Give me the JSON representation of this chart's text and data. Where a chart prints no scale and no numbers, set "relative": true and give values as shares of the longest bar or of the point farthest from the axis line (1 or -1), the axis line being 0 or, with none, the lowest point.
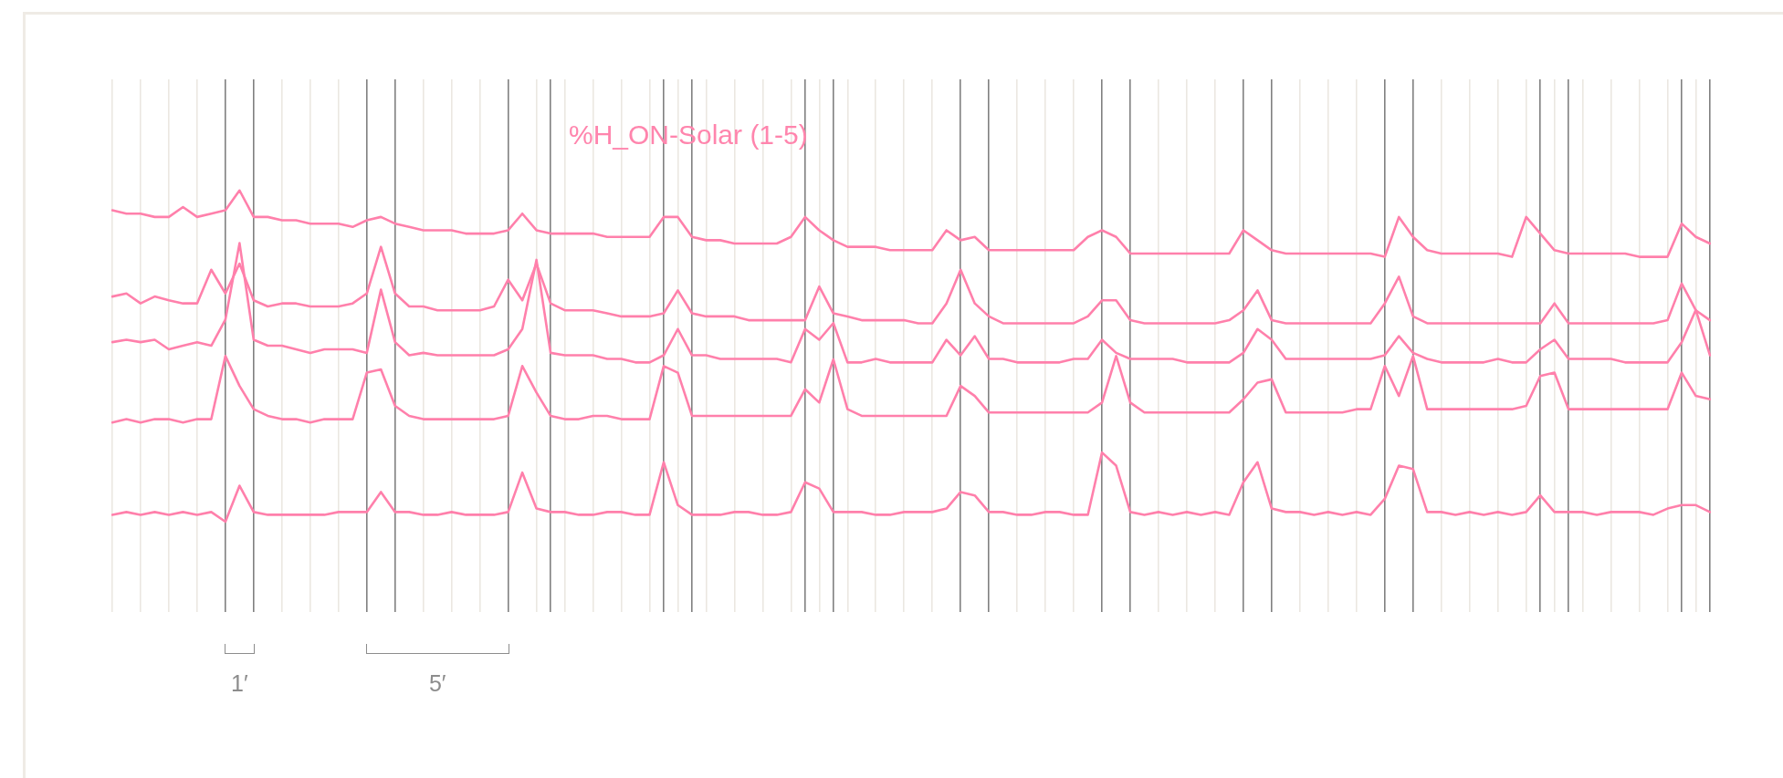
{
  "chart_data": [
    {
      "type": "line",
      "title": "%H_ON-Solar (1-5)",
      "relative": true,
      "grid": "x",
      "annotations": [
        "1′",
        "5′"
      ],
      "categories": [
        null,
        null,
        null,
        null,
        null,
        null,
        null,
        null,
        null,
        null,
        null,
        null,
        null,
        null,
        null,
        null,
        null,
        null,
        null,
        null,
        null,
        null,
        null,
        null,
        null,
        null,
        null,
        null,
        null,
        null,
        null,
        null,
        null,
        null,
        null,
        null,
        null,
        null,
        null,
        null,
        null,
        null,
        null,
        null,
        null,
        null,
        null,
        null,
        null,
        null,
        null,
        null,
        null,
        null,
        null,
        null,
        null,
        null,
        null,
        null,
        null,
        null,
        null,
        null,
        null,
        null,
        null,
        null,
        null,
        null,
        null,
        null,
        null,
        null,
        null,
        null,
        null,
        null,
        null,
        null,
        null,
        null,
        null,
        null,
        null,
        null,
        null,
        null,
        null,
        null,
        null,
        null,
        null,
        null,
        null,
        null,
        null,
        null,
        null,
        null,
        null,
        null,
        null,
        null,
        null,
        null,
        null,
        null,
        null,
        null,
        null,
        null,
        null,
        null
      ],
      "series": [
        {
          "color": "#ff80ab",
          "values": [
            0.7,
            0.65,
            0.65,
            0.6,
            0.6,
            0.75,
            0.6,
            0.65,
            0.7,
            1,
            0.6,
            0.6,
            0.55,
            0.55,
            0.5,
            0.5,
            0.5,
            0.45,
            0.55,
            0.6,
            0.5,
            0.45,
            0.4,
            0.4,
            0.4,
            0.35,
            0.35,
            0.35,
            0.4,
            0.65,
            0.4,
            0.35,
            0.35,
            0.35,
            0.35,
            0.3,
            0.3,
            0.3,
            0.3,
            0.6,
            0.6,
            0.3,
            0.25,
            0.25,
            0.2,
            0.2,
            0.2,
            0.2,
            0.3,
            0.6,
            0.4,
            0.25,
            0.15,
            0.15,
            0.15,
            0.1,
            0.1,
            0.1,
            0.1,
            0.4,
            0.25,
            0.3,
            0.1,
            0.1,
            0.1,
            0.1,
            0.1,
            0.1,
            0.1,
            0.3,
            0.4,
            0.3,
            0.05,
            0.05,
            0.05,
            0.05,
            0.05,
            0.05,
            0.05,
            0.05,
            0.4,
            0.25,
            0.1,
            0.05,
            0.05,
            0.05,
            0.05,
            0.05,
            0.05,
            0.05,
            0,
            0.6,
            0.3,
            0.1,
            0.05,
            0.05,
            0.05,
            0.05,
            0.05,
            0,
            0.6,
            0.35,
            0.1,
            0.05,
            0.05,
            0.05,
            0.05,
            0.05,
            0,
            0,
            0,
            0.5,
            0.3,
            0.2
          ]
        }
      ]
    },
    {
      "type": "line",
      "relative": true,
      "categories": [
        null,
        null,
        null,
        null,
        null,
        null,
        null,
        null,
        null,
        null,
        null,
        null,
        null,
        null,
        null,
        null,
        null,
        null,
        null,
        null,
        null,
        null,
        null,
        null,
        null,
        null,
        null,
        null,
        null,
        null,
        null,
        null,
        null,
        null,
        null,
        null,
        null,
        null,
        null,
        null,
        null,
        null,
        null,
        null,
        null,
        null,
        null,
        null,
        null,
        null,
        null,
        null,
        null,
        null,
        null,
        null,
        null,
        null,
        null,
        null,
        null,
        null,
        null,
        null,
        null,
        null,
        null,
        null,
        null,
        null,
        null,
        null,
        null,
        null,
        null,
        null,
        null,
        null,
        null,
        null,
        null,
        null,
        null,
        null,
        null,
        null,
        null,
        null,
        null,
        null,
        null,
        null,
        null,
        null,
        null,
        null,
        null,
        null,
        null,
        null,
        null,
        null,
        null,
        null,
        null,
        null,
        null,
        null,
        null,
        null,
        null,
        null,
        null,
        null
      ],
      "series": [
        {
          "color": "#ff80ab",
          "values": [
            0.35,
            0.39,
            0.26,
            0.35,
            0.3,
            0.26,
            0.26,
            0.7,
            0.39,
            0.78,
            0.3,
            0.22,
            0.26,
            0.26,
            0.22,
            0.22,
            0.22,
            0.26,
            0.39,
            1,
            0.39,
            0.22,
            0.22,
            0.17,
            0.17,
            0.17,
            0.17,
            0.22,
            0.57,
            0.3,
            0.78,
            0.26,
            0.17,
            0.17,
            0.17,
            0.13,
            0.09,
            0.09,
            0.09,
            0.13,
            0.43,
            0.13,
            0.09,
            0.09,
            0.09,
            0.04,
            0.04,
            0.04,
            0.04,
            0.04,
            0.48,
            0.13,
            0.09,
            0.04,
            0.04,
            0.04,
            0.04,
            0,
            0,
            0.26,
            0.7,
            0.26,
            0.09,
            0,
            0,
            0,
            0,
            0,
            0,
            0.09,
            0.3,
            0.3,
            0.04,
            0,
            0,
            0,
            0,
            0,
            0,
            0.04,
            0.17,
            0.43,
            0.04,
            0,
            0,
            0,
            0,
            0,
            0,
            0,
            0.26,
            0.61,
            0.09,
            0,
            0,
            0,
            0,
            0,
            0,
            0,
            0,
            0,
            0.26,
            0,
            0,
            0,
            0,
            0,
            0,
            0,
            0.04,
            0.52,
            0.17,
            0.04
          ]
        }
      ]
    },
    {
      "type": "line",
      "relative": true,
      "categories": [
        null,
        null,
        null,
        null,
        null,
        null,
        null,
        null,
        null,
        null,
        null,
        null,
        null,
        null,
        null,
        null,
        null,
        null,
        null,
        null,
        null,
        null,
        null,
        null,
        null,
        null,
        null,
        null,
        null,
        null,
        null,
        null,
        null,
        null,
        null,
        null,
        null,
        null,
        null,
        null,
        null,
        null,
        null,
        null,
        null,
        null,
        null,
        null,
        null,
        null,
        null,
        null,
        null,
        null,
        null,
        null,
        null,
        null,
        null,
        null,
        null,
        null,
        null,
        null,
        null,
        null,
        null,
        null,
        null,
        null,
        null,
        null,
        null,
        null,
        null,
        null,
        null,
        null,
        null,
        null,
        null,
        null,
        null,
        null,
        null,
        null,
        null,
        null,
        null,
        null,
        null,
        null,
        null,
        null,
        null,
        null,
        null,
        null,
        null,
        null,
        null,
        null,
        null,
        null,
        null,
        null,
        null,
        null,
        null,
        null,
        null,
        null,
        null,
        null
      ],
      "series": [
        {
          "color": "#ff80ab",
          "values": [
            0.17,
            0.19,
            0.17,
            0.19,
            0.11,
            0.14,
            0.17,
            0.14,
            0.36,
            1,
            0.19,
            0.14,
            0.14,
            0.11,
            0.08,
            0.11,
            0.11,
            0.11,
            0.08,
            0.61,
            0.17,
            0.06,
            0.08,
            0.06,
            0.06,
            0.06,
            0.06,
            0.06,
            0.11,
            0.28,
            0.86,
            0.08,
            0.06,
            0.06,
            0.06,
            0.03,
            0.03,
            0,
            0,
            0.06,
            0.28,
            0.06,
            0.06,
            0.03,
            0.03,
            0.03,
            0.03,
            0.03,
            0,
            0.28,
            0.19,
            0.33,
            0,
            0,
            0.03,
            0,
            0,
            0,
            0,
            0.19,
            0.06,
            0.22,
            0.03,
            0.03,
            0,
            0,
            0,
            0,
            0.03,
            0.03,
            0.19,
            0.08,
            0.03,
            0.03,
            0.03,
            0.03,
            0,
            0,
            0,
            0,
            0.08,
            0.28,
            0.19,
            0.03,
            0.03,
            0.03,
            0.03,
            0.03,
            0.03,
            0.03,
            0.06,
            0.22,
            0.08,
            0.03,
            0,
            0,
            0,
            0,
            0.03,
            0,
            0,
            0.11,
            0.19,
            0.03,
            0.03,
            0.03,
            0.03,
            0,
            0,
            0,
            0,
            0.17,
            0.44,
            0.06
          ]
        }
      ]
    },
    {
      "type": "line",
      "relative": true,
      "categories": [
        null,
        null,
        null,
        null,
        null,
        null,
        null,
        null,
        null,
        null,
        null,
        null,
        null,
        null,
        null,
        null,
        null,
        null,
        null,
        null,
        null,
        null,
        null,
        null,
        null,
        null,
        null,
        null,
        null,
        null,
        null,
        null,
        null,
        null,
        null,
        null,
        null,
        null,
        null,
        null,
        null,
        null,
        null,
        null,
        null,
        null,
        null,
        null,
        null,
        null,
        null,
        null,
        null,
        null,
        null,
        null,
        null,
        null,
        null,
        null,
        null,
        null,
        null,
        null,
        null,
        null,
        null,
        null,
        null,
        null,
        null,
        null,
        null,
        null,
        null,
        null,
        null,
        null,
        null,
        null,
        null,
        null,
        null,
        null,
        null,
        null,
        null,
        null,
        null,
        null,
        null,
        null,
        null,
        null,
        null,
        null,
        null,
        null,
        null,
        null,
        null,
        null,
        null,
        null,
        null,
        null,
        null,
        null,
        null,
        null,
        null,
        null,
        null,
        null
      ],
      "series": [
        {
          "color": "#ff80ab",
          "values": [
            0,
            0.05,
            0,
            0.05,
            0.05,
            0,
            0.05,
            0.05,
            1,
            0.55,
            0.2,
            0.1,
            0.05,
            0.05,
            0,
            0.05,
            0.05,
            0.05,
            0.75,
            0.8,
            0.25,
            0.1,
            0.05,
            0.05,
            0.05,
            0.05,
            0.05,
            0.05,
            0.1,
            0.85,
            0.45,
            0.1,
            0.05,
            0.05,
            0.1,
            0.1,
            0.05,
            0.05,
            0.05,
            0.85,
            0.75,
            0.1,
            0.1,
            0.1,
            0.1,
            0.1,
            0.1,
            0.1,
            0.1,
            0.5,
            0.3,
            0.95,
            0.2,
            0.1,
            0.1,
            0.1,
            0.1,
            0.1,
            0.1,
            0.1,
            0.55,
            0.4,
            0.15,
            0.15,
            0.15,
            0.15,
            0.15,
            0.15,
            0.15,
            0.15,
            0.3,
            1,
            0.3,
            0.15,
            0.15,
            0.15,
            0.15,
            0.15,
            0.15,
            0.15,
            0.35,
            0.6,
            0.65,
            0.15,
            0.15,
            0.15,
            0.15,
            0.15,
            0.2,
            0.2,
            0.85,
            0.4,
            1,
            0.2,
            0.2,
            0.2,
            0.2,
            0.2,
            0.2,
            0.2,
            0.25,
            0.7,
            0.75,
            0.2,
            0.2,
            0.2,
            0.2,
            0.2,
            0.2,
            0.2,
            0.2,
            0.75,
            0.4,
            0.35
          ]
        }
      ]
    },
    {
      "type": "line",
      "relative": true,
      "categories": [
        null,
        null,
        null,
        null,
        null,
        null,
        null,
        null,
        null,
        null,
        null,
        null,
        null,
        null,
        null,
        null,
        null,
        null,
        null,
        null,
        null,
        null,
        null,
        null,
        null,
        null,
        null,
        null,
        null,
        null,
        null,
        null,
        null,
        null,
        null,
        null,
        null,
        null,
        null,
        null,
        null,
        null,
        null,
        null,
        null,
        null,
        null,
        null,
        null,
        null,
        null,
        null,
        null,
        null,
        null,
        null,
        null,
        null,
        null,
        null,
        null,
        null,
        null,
        null,
        null,
        null,
        null,
        null,
        null,
        null,
        null,
        null,
        null,
        null,
        null,
        null,
        null,
        null,
        null,
        null,
        null,
        null,
        null,
        null,
        null,
        null,
        null,
        null,
        null,
        null,
        null,
        null,
        null,
        null,
        null,
        null,
        null,
        null,
        null,
        null,
        null,
        null,
        null,
        null,
        null,
        null,
        null,
        null,
        null,
        null,
        null,
        null,
        null,
        null
      ],
      "series": [
        {
          "color": "#ff80ab",
          "values": [
            0.1,
            0.14,
            0.1,
            0.14,
            0.1,
            0.14,
            0.1,
            0.14,
            0,
            0.52,
            0.14,
            0.1,
            0.1,
            0.1,
            0.1,
            0.1,
            0.14,
            0.14,
            0.14,
            0.43,
            0.14,
            0.14,
            0.1,
            0.1,
            0.14,
            0.1,
            0.1,
            0.1,
            0.14,
            0.71,
            0.19,
            0.14,
            0.14,
            0.1,
            0.1,
            0.14,
            0.14,
            0.1,
            0.1,
            0.86,
            0.24,
            0.1,
            0.1,
            0.1,
            0.14,
            0.14,
            0.1,
            0.1,
            0.14,
            0.57,
            0.48,
            0.14,
            0.14,
            0.14,
            0.1,
            0.1,
            0.14,
            0.14,
            0.14,
            0.19,
            0.43,
            0.38,
            0.14,
            0.14,
            0.1,
            0.1,
            0.14,
            0.14,
            0.1,
            0.1,
            1,
            0.81,
            0.14,
            0.1,
            0.14,
            0.1,
            0.14,
            0.1,
            0.14,
            0.1,
            0.57,
            0.86,
            0.19,
            0.14,
            0.14,
            0.1,
            0.14,
            0.1,
            0.14,
            0.1,
            0.33,
            0.81,
            0.76,
            0.14,
            0.14,
            0.1,
            0.14,
            0.1,
            0.14,
            0.1,
            0.14,
            0.38,
            0.14,
            0.14,
            0.14,
            0.1,
            0.14,
            0.14,
            0.14,
            0.1,
            0.19,
            0.24,
            0.24,
            0.14
          ]
        }
      ]
    }
  ]
}
